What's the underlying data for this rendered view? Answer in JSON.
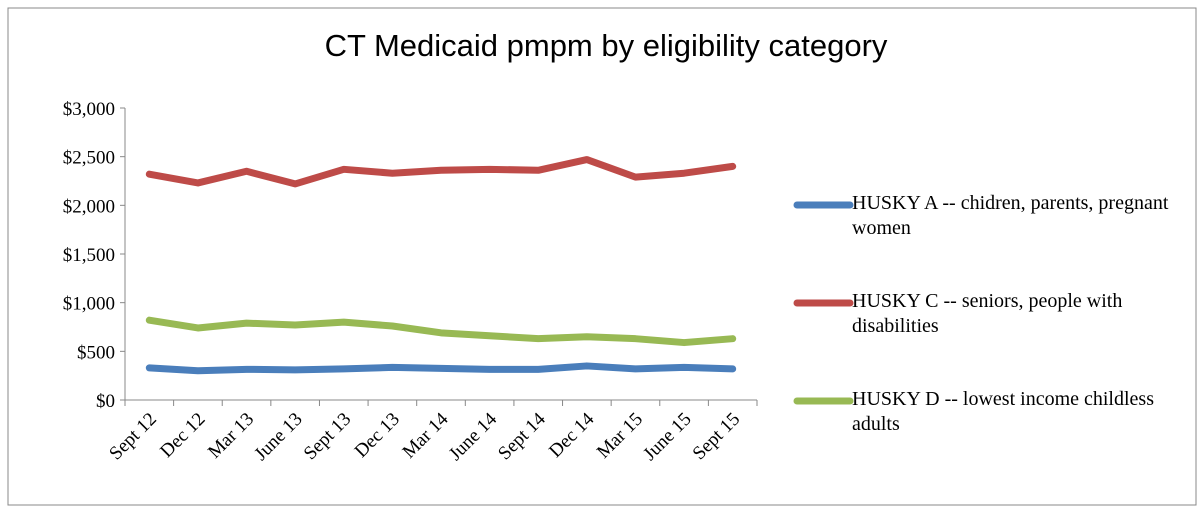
{
  "chart_data": {
    "type": "line",
    "title": "CT Medicaid pmpm by eligibility category",
    "categories": [
      "Sept 12",
      "Dec 12",
      "Mar 13",
      "June 13",
      "Sept 13",
      "Dec 13",
      "Mar 14",
      "June 14",
      "Sept 14",
      "Dec 14",
      "Mar 15",
      "June 15",
      "Sept 15"
    ],
    "series": [
      {
        "name": "HUSKY A -- chidren, parents, pregnant women",
        "color": "#4a7ebb",
        "values": [
          330,
          300,
          315,
          310,
          320,
          335,
          325,
          315,
          315,
          350,
          320,
          335,
          320
        ]
      },
      {
        "name": "HUSKY C -- seniors, people with disabilities",
        "color": "#be4b48",
        "values": [
          2320,
          2230,
          2350,
          2220,
          2370,
          2330,
          2360,
          2370,
          2360,
          2470,
          2290,
          2330,
          2400
        ]
      },
      {
        "name": "HUSKY D -- lowest income childless adults",
        "color": "#98b954",
        "values": [
          820,
          740,
          790,
          770,
          800,
          760,
          690,
          660,
          630,
          650,
          630,
          590,
          630
        ]
      }
    ],
    "ylim": [
      0,
      3000
    ],
    "yticks": [
      {
        "value": 0,
        "label": "$0"
      },
      {
        "value": 500,
        "label": "$500"
      },
      {
        "value": 1000,
        "label": "$1,000"
      },
      {
        "value": 1500,
        "label": "$1,500"
      },
      {
        "value": 2000,
        "label": "$2,000"
      },
      {
        "value": 2500,
        "label": "$2,500"
      },
      {
        "value": 3000,
        "label": "$3,000"
      }
    ],
    "grid": false,
    "legend": "right"
  }
}
